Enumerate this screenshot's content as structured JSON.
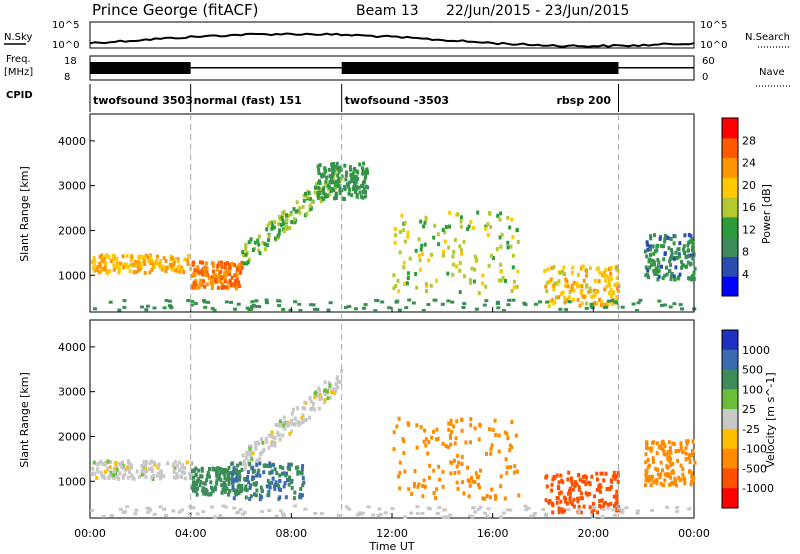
{
  "header": {
    "title": "Prince George (fitACF)",
    "beam": "Beam 13",
    "date_range": "22/Jun/2015 - 23/Jun/2015"
  },
  "top_panels": {
    "nsky_label": "N.Sky",
    "nsearch_label": "N.Search",
    "freq_label_1": "Freq.",
    "freq_label_2": "[MHz]",
    "nave_label": "Nave",
    "cpid_label": "CPID",
    "nsky_ticks": [
      "10^5",
      "10^0"
    ],
    "nsearch_ticks": [
      "10^5",
      "10^0"
    ],
    "freq_ticks": [
      "18",
      "8"
    ],
    "nave_ticks": [
      "60",
      "0"
    ],
    "cpid_segments": [
      {
        "label": "twofsound 3503",
        "start_h": 0,
        "end_h": 4
      },
      {
        "label": "normal (fast) 151",
        "start_h": 4,
        "end_h": 10
      },
      {
        "label": "twofsound -3503",
        "start_h": 10,
        "end_h": 21
      },
      {
        "label": "rbsp 200",
        "start_h": 21,
        "end_h": 24
      }
    ]
  },
  "colors": {
    "power_scale": [
      "#0000ff",
      "#2a4bb0",
      "#3c8c5a",
      "#2e9b3a",
      "#b4c832",
      "#ffc800",
      "#ff9600",
      "#ff5a00",
      "#ff0000"
    ],
    "velocity_scale": [
      "#2030c0",
      "#3a6ab0",
      "#3c8c5a",
      "#6abe3a",
      "#c8c8c8",
      "#ffbe00",
      "#ff8c00",
      "#ff5000",
      "#ff0000"
    ]
  },
  "chart_data": [
    {
      "type": "heatmap",
      "title": "",
      "xlabel": "Time UT",
      "ylabel": "Slant Range [km]",
      "colorbar_label": "Power [dB]",
      "colorbar_ticks": [
        "4",
        "8",
        "12",
        "16",
        "20",
        "24",
        "28"
      ],
      "x_ticks": [
        "00:00",
        "04:00",
        "08:00",
        "12:00",
        "16:00",
        "20:00",
        "00:00"
      ],
      "y_ticks": [
        "1000",
        "2000",
        "3000",
        "4000"
      ],
      "xlim": [
        0,
        24
      ],
      "ylim": [
        180,
        4600
      ],
      "regions": [
        {
          "name": "band-0-4",
          "t": [
            0,
            4
          ],
          "range": [
            1050,
            1450
          ],
          "level": 22
        },
        {
          "name": "band-4-6",
          "t": [
            4,
            6
          ],
          "range": [
            700,
            1300
          ],
          "level": 26
        },
        {
          "name": "arc-rise",
          "t": [
            6,
            10
          ],
          "range": [
            1400,
            3300
          ],
          "level": 14
        },
        {
          "name": "arc-top",
          "t": [
            9,
            11
          ],
          "range": [
            2700,
            3500
          ],
          "level": 10
        },
        {
          "name": "mid-clusters",
          "t": [
            12,
            17
          ],
          "range": [
            600,
            2400
          ],
          "level": 16
        },
        {
          "name": "late-echoes",
          "t": [
            18,
            21
          ],
          "range": [
            300,
            1200
          ],
          "level": 20
        },
        {
          "name": "right-patch",
          "t": [
            22,
            24
          ],
          "range": [
            900,
            1900
          ],
          "level": 8
        }
      ]
    },
    {
      "type": "heatmap",
      "title": "",
      "xlabel": "Time UT",
      "ylabel": "Slant Range [km]",
      "colorbar_label": "Velocity [m s^-1]",
      "colorbar_ticks": [
        "1000",
        "500",
        "100",
        "25",
        "-25",
        "-100",
        "-500",
        "-1000"
      ],
      "x_ticks": [
        "00:00",
        "04:00",
        "08:00",
        "12:00",
        "16:00",
        "20:00",
        "00:00"
      ],
      "y_ticks": [
        "1000",
        "2000",
        "3000",
        "4000"
      ],
      "xlim": [
        0,
        24
      ],
      "ylim": [
        180,
        4600
      ],
      "regions": [
        {
          "name": "band-0-4",
          "t": [
            0,
            4
          ],
          "range": [
            1050,
            1450
          ],
          "velocity": 0
        },
        {
          "name": "band-4-6",
          "t": [
            4,
            6
          ],
          "range": [
            700,
            1300
          ],
          "velocity": 150
        },
        {
          "name": "arc-rise",
          "t": [
            6,
            10
          ],
          "range": [
            1400,
            3300
          ],
          "velocity": 0
        },
        {
          "name": "green-patch",
          "t": [
            5.5,
            8.5
          ],
          "range": [
            600,
            1400
          ],
          "velocity": 300
        },
        {
          "name": "mid-clusters",
          "t": [
            12,
            17
          ],
          "range": [
            600,
            2400
          ],
          "velocity": -150
        },
        {
          "name": "late-echoes",
          "t": [
            18,
            21
          ],
          "range": [
            300,
            1200
          ],
          "velocity": -600
        },
        {
          "name": "right-patch",
          "t": [
            22,
            24
          ],
          "range": [
            900,
            1900
          ],
          "velocity": -200
        }
      ]
    }
  ]
}
